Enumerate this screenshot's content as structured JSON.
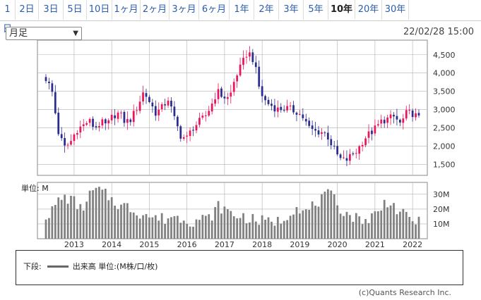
{
  "tabs": [
    {
      "label": "1日",
      "active": false
    },
    {
      "label": "2日",
      "active": false
    },
    {
      "label": "3日",
      "active": false
    },
    {
      "label": "5日",
      "active": false
    },
    {
      "label": "10日",
      "active": false
    },
    {
      "label": "1ヶ月",
      "active": false
    },
    {
      "label": "2ヶ月",
      "active": false
    },
    {
      "label": "3ヶ月",
      "active": false
    },
    {
      "label": "6ヶ月",
      "active": false
    },
    {
      "label": "1年",
      "active": false
    },
    {
      "label": "2年",
      "active": false
    },
    {
      "label": "3年",
      "active": false
    },
    {
      "label": "5年",
      "active": false
    },
    {
      "label": "10年",
      "active": true
    },
    {
      "label": "20年",
      "active": false
    },
    {
      "label": "30年",
      "active": false
    }
  ],
  "period_select": {
    "value": "月足"
  },
  "datetime": "22/02/28 15:00",
  "volume_unit_label": "単位: M",
  "legend": {
    "prefix": "下段:",
    "text": "出来高 単位:(M株/口/枚)"
  },
  "credit": "(c)Quants Research Inc.",
  "colors": {
    "up": "#e8175d",
    "down": "#2b2c8f",
    "volume": "#808080",
    "grid": "#b0b0b0"
  },
  "chart_data": [
    {
      "type": "candlestick",
      "title": "",
      "x_tick_labels": [
        "2013",
        "2014",
        "2015",
        "2016",
        "2017",
        "2018",
        "2019",
        "2020",
        "2021",
        "2022"
      ],
      "y_tick_labels": [
        "1,500",
        "2,000",
        "2,500",
        "3,000",
        "3,500",
        "4,000",
        "4,500"
      ],
      "ylim": [
        1200,
        4900
      ],
      "grid": true,
      "anchors": [
        3850,
        3500,
        2400,
        1950,
        2100,
        2450,
        2550,
        2700,
        2500,
        2650,
        2550,
        2850,
        2900,
        2650,
        2750,
        3100,
        3500,
        3200,
        2900,
        3050,
        3300,
        2750,
        2300,
        2200,
        2500,
        2650,
        2800,
        3100,
        3500,
        3350,
        3300,
        3900,
        4200,
        4600,
        4350,
        3500,
        3200,
        3100,
        3000,
        3050,
        3000,
        2950,
        2800,
        2500,
        2400,
        2400,
        2300,
        1950,
        1650,
        1600,
        1750,
        1900,
        2200,
        2350,
        2500,
        2700,
        2750,
        2800,
        2600,
        2900,
        2900,
        2750
      ],
      "start": "2012-04"
    },
    {
      "type": "bar",
      "title": "",
      "unit": "M",
      "y_tick_labels": [
        "10M",
        "20M",
        "30M"
      ],
      "ylim": [
        0,
        38
      ],
      "grid": true,
      "volume_profile": [
        16,
        18,
        25,
        28,
        27,
        25,
        20,
        24,
        32,
        33,
        31,
        28,
        25,
        22,
        22,
        20,
        17,
        18,
        15,
        14,
        14,
        13,
        16,
        14,
        14,
        12,
        12,
        14,
        13,
        16,
        22,
        20,
        18,
        15,
        16,
        14,
        13,
        12,
        12,
        11,
        12,
        12,
        16,
        20,
        22,
        17,
        20,
        24,
        26,
        30,
        28,
        22,
        18,
        16,
        14,
        14,
        12,
        16,
        18,
        24,
        26,
        20,
        17,
        14,
        13,
        11
      ]
    }
  ]
}
